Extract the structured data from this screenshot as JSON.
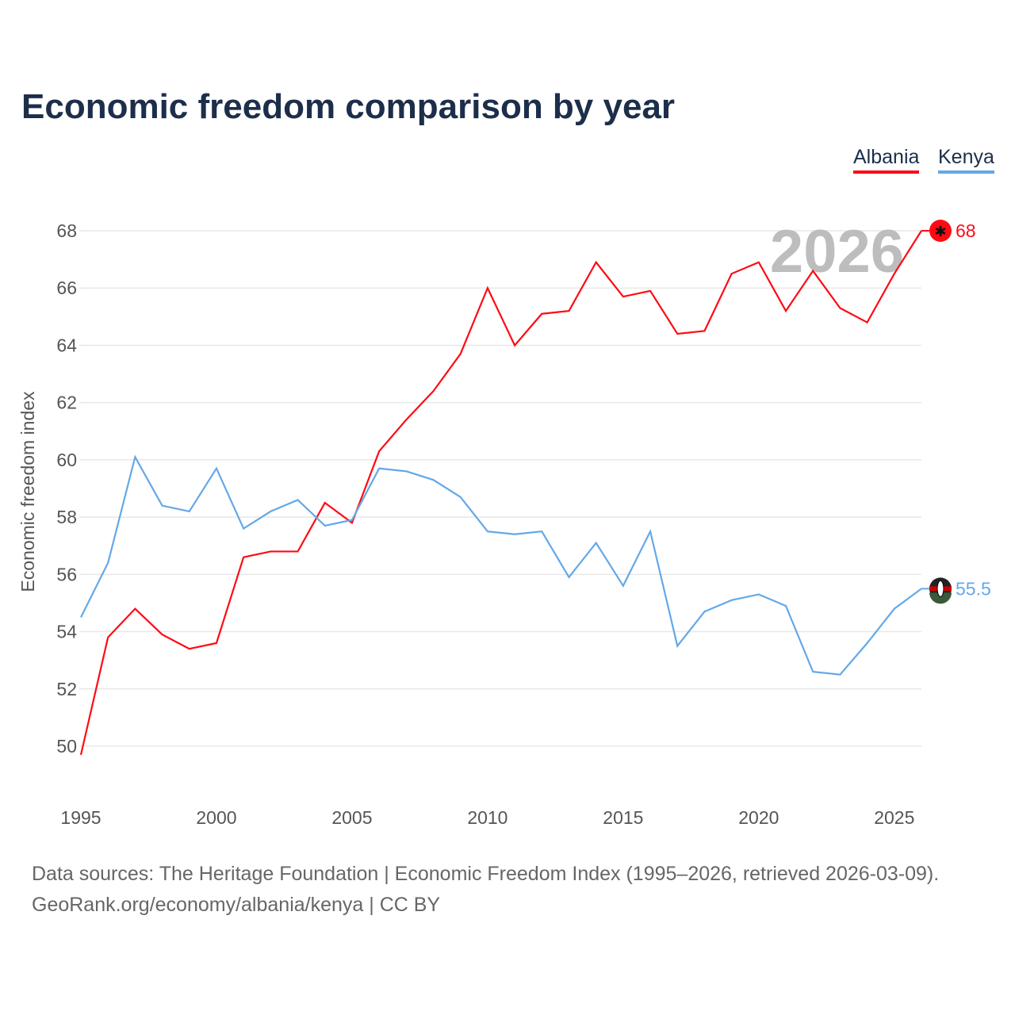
{
  "chart_data": {
    "type": "line",
    "title": "Economic freedom comparison by year",
    "xlabel": "",
    "ylabel": "Economic freedom index",
    "x": [
      1995,
      1996,
      1997,
      1998,
      1999,
      2000,
      2001,
      2002,
      2003,
      2004,
      2005,
      2006,
      2007,
      2008,
      2009,
      2010,
      2011,
      2012,
      2013,
      2014,
      2015,
      2016,
      2017,
      2018,
      2019,
      2020,
      2021,
      2022,
      2023,
      2024,
      2025,
      2026
    ],
    "xlim": [
      1995,
      2026
    ],
    "ylim": [
      48.5,
      69
    ],
    "xticks": [
      1995,
      2000,
      2005,
      2010,
      2015,
      2020,
      2025
    ],
    "yticks": [
      50,
      52,
      54,
      56,
      58,
      60,
      62,
      64,
      66,
      68
    ],
    "grid": true,
    "legend_position": "top-right",
    "year_watermark": "2026",
    "series": [
      {
        "name": "Albania",
        "color": "#ff0a14",
        "end_label": "68",
        "values": [
          49.7,
          53.8,
          54.8,
          53.9,
          53.4,
          53.6,
          56.6,
          56.8,
          56.8,
          58.5,
          57.8,
          60.3,
          61.4,
          62.4,
          63.7,
          66.0,
          64.0,
          65.1,
          65.2,
          66.9,
          65.7,
          65.9,
          64.4,
          64.5,
          66.5,
          66.9,
          65.2,
          66.6,
          65.3,
          64.8,
          66.5,
          68.0
        ]
      },
      {
        "name": "Kenya",
        "color": "#64a8e8",
        "end_label": "55.5",
        "values": [
          54.5,
          56.4,
          60.1,
          58.4,
          58.2,
          59.7,
          57.6,
          58.2,
          58.6,
          57.7,
          57.9,
          59.7,
          59.6,
          59.3,
          58.7,
          57.5,
          57.4,
          57.5,
          55.9,
          57.1,
          55.6,
          57.5,
          53.5,
          54.7,
          55.1,
          55.3,
          54.9,
          52.6,
          52.5,
          53.6,
          54.8,
          55.5
        ]
      }
    ]
  },
  "footer": {
    "line1": "Data sources: The Heritage Foundation | Economic Freedom Index (1995–2026, retrieved 2026-03-09).",
    "line2": "GeoRank.org/economy/albania/kenya | CC BY"
  }
}
